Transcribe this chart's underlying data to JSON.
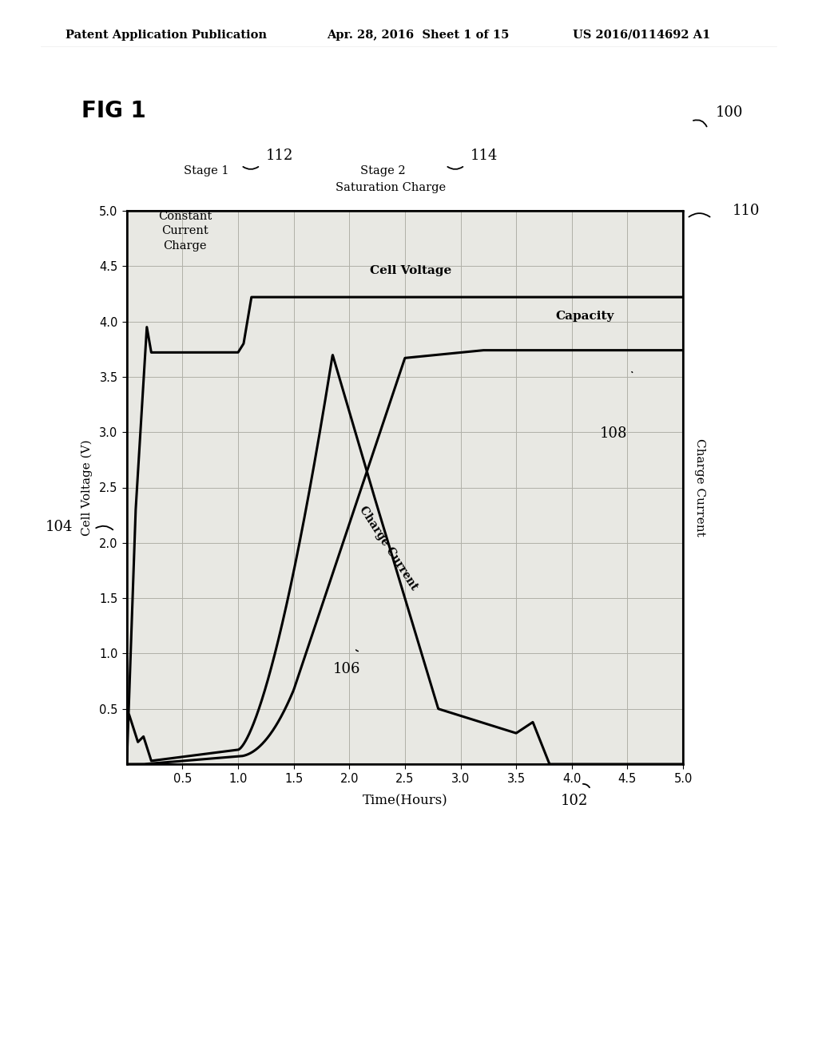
{
  "header_left": "Patent Application Publication",
  "header_mid": "Apr. 28, 2016  Sheet 1 of 15",
  "header_right": "US 2016/0114692 A1",
  "fig_label": "FIG 1",
  "ref_100": "100",
  "ref_102": "102",
  "ref_104": "104",
  "ref_106": "106",
  "ref_108": "108",
  "ref_110": "110",
  "ref_112": "112",
  "ref_114": "114",
  "stage1_label": "Stage 1",
  "stage1_sub": "Constant\nCurrent\nCharge",
  "stage2_label": "Stage 2",
  "stage2_sub": "Saturation Charge",
  "xlabel": "Time(Hours)",
  "ylabel_left": "Cell Voltage (V)",
  "ylabel_right": "Charge Current",
  "xlim": [
    0,
    5.0
  ],
  "ylim": [
    0,
    5.0
  ],
  "xticks": [
    0.5,
    1.0,
    1.5,
    2.0,
    2.5,
    3.0,
    3.5,
    4.0,
    4.5,
    5.0
  ],
  "yticks": [
    0.5,
    1.0,
    1.5,
    2.0,
    2.5,
    3.0,
    3.5,
    4.0,
    4.5,
    5.0
  ],
  "label_cell_voltage": "Cell Voltage",
  "label_capacity": "Capacity",
  "label_charge_current": "Charge Current",
  "background_color": "#f5f5f0",
  "plot_bg": "#e8e8e3",
  "line_color": "#000000",
  "grid_color": "#b0b0a8"
}
